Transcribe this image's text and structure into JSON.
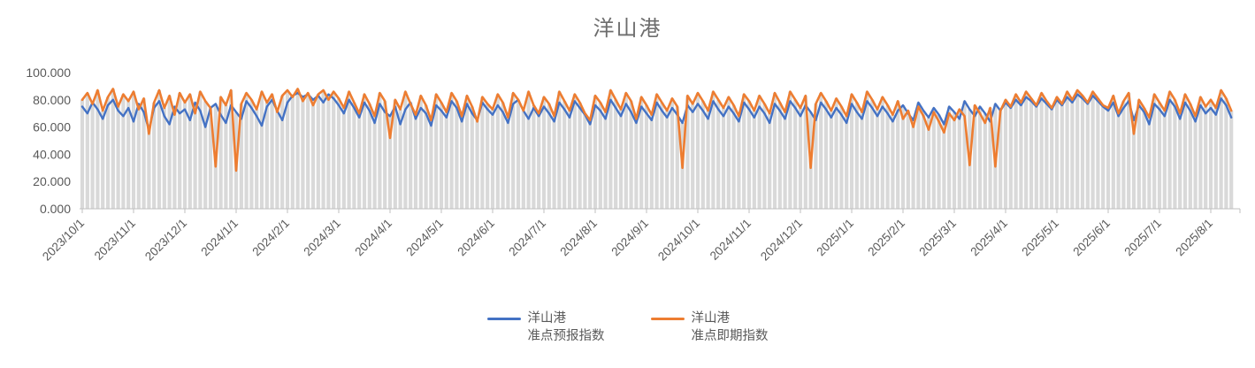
{
  "chart_data": {
    "type": "line",
    "title": "洋山港",
    "xlabel": "",
    "ylabel": "",
    "ylim": [
      0,
      100
    ],
    "grid": "none",
    "legend_position": "bottom",
    "points_per_month": 10,
    "dropline_color": "#D9D9D9",
    "axis_color": "#BFBFBF",
    "text_color": "#595959",
    "y_ticks": [
      0,
      20,
      40,
      60,
      80,
      100
    ],
    "y_tick_labels": [
      "0.000",
      "20.000",
      "40.000",
      "60.000",
      "80.000",
      "100.000"
    ],
    "x_tick_labels": [
      "2023/10/1",
      "2023/11/1",
      "2023/12/1",
      "2024/1/1",
      "2024/2/1",
      "2024/3/1",
      "2024/4/1",
      "2024/5/1",
      "2024/6/1",
      "2024/7/1",
      "2024/8/1",
      "2024/9/1",
      "2024/10/1",
      "2024/11/1",
      "2024/12/1",
      "2025/1/1",
      "2025/2/1",
      "2025/3/1",
      "2025/4/1",
      "2025/5/1",
      "2025/6/1",
      "2025/7/1",
      "2025/8/1"
    ],
    "series": [
      {
        "name": "洋山港 准点预报指数",
        "legend_line1": "洋山港",
        "legend_line2": "准点预报指数",
        "color": "#4472C4",
        "values": [
          75,
          70,
          78,
          73,
          66,
          76,
          80,
          72,
          68,
          74,
          64,
          77,
          71,
          58,
          74,
          79,
          68,
          62,
          75,
          70,
          73,
          65,
          78,
          72,
          60,
          74,
          77,
          69,
          63,
          76,
          71,
          66,
          79,
          74,
          68,
          61,
          75,
          80,
          72,
          65,
          78,
          83,
          85,
          82,
          84,
          80,
          83,
          78,
          84,
          81,
          76,
          70,
          80,
          74,
          67,
          78,
          72,
          63,
          77,
          71,
          68,
          75,
          62,
          73,
          78,
          66,
          74,
          70,
          61,
          76,
          72,
          67,
          79,
          74,
          64,
          77,
          70,
          65,
          78,
          73,
          69,
          76,
          71,
          63,
          77,
          80,
          72,
          66,
          74,
          68,
          75,
          70,
          64,
          78,
          73,
          67,
          79,
          74,
          69,
          62,
          76,
          72,
          66,
          80,
          74,
          68,
          77,
          71,
          63,
          75,
          70,
          65,
          78,
          72,
          67,
          74,
          69,
          63,
          76,
          71,
          77,
          72,
          66,
          79,
          73,
          68,
          75,
          70,
          64,
          78,
          73,
          67,
          75,
          70,
          63,
          77,
          72,
          66,
          79,
          74,
          68,
          76,
          71,
          65,
          78,
          73,
          67,
          74,
          69,
          63,
          77,
          71,
          66,
          79,
          74,
          68,
          75,
          70,
          64,
          72,
          76,
          70,
          65,
          78,
          72,
          67,
          74,
          69,
          62,
          75,
          71,
          66,
          79,
          73,
          68,
          75,
          70,
          64,
          77,
          72,
          78,
          74,
          80,
          76,
          82,
          79,
          75,
          81,
          77,
          73,
          80,
          76,
          82,
          78,
          84,
          81,
          77,
          83,
          79,
          75,
          72,
          78,
          68,
          74,
          79,
          65,
          76,
          71,
          62,
          77,
          73,
          68,
          80,
          75,
          66,
          78,
          72,
          64,
          76,
          70,
          74,
          69,
          81,
          76,
          67
        ]
      },
      {
        "name": "洋山港 准点即期指数",
        "legend_line1": "洋山港",
        "legend_line2": "准点即期指数",
        "color": "#ED7D31",
        "values": [
          80,
          85,
          77,
          87,
          72,
          82,
          88,
          75,
          84,
          79,
          86,
          73,
          81,
          55,
          78,
          87,
          74,
          83,
          69,
          85,
          78,
          84,
          70,
          86,
          79,
          74,
          31,
          82,
          76,
          87,
          28,
          77,
          85,
          80,
          73,
          86,
          78,
          84,
          71,
          83,
          87,
          82,
          88,
          79,
          85,
          76,
          84,
          87,
          80,
          86,
          81,
          74,
          86,
          78,
          70,
          84,
          77,
          68,
          85,
          79,
          52,
          80,
          73,
          86,
          77,
          69,
          83,
          76,
          65,
          84,
          78,
          71,
          85,
          79,
          68,
          83,
          75,
          64,
          82,
          77,
          73,
          84,
          78,
          67,
          85,
          80,
          72,
          86,
          76,
          70,
          82,
          77,
          68,
          86,
          79,
          72,
          84,
          78,
          70,
          65,
          83,
          78,
          71,
          87,
          80,
          73,
          85,
          79,
          66,
          82,
          76,
          69,
          84,
          78,
          72,
          81,
          75,
          30,
          83,
          77,
          85,
          79,
          72,
          86,
          80,
          74,
          82,
          76,
          68,
          84,
          79,
          72,
          83,
          77,
          70,
          85,
          78,
          71,
          86,
          80,
          74,
          83,
          30,
          77,
          85,
          79,
          72,
          81,
          75,
          68,
          84,
          78,
          71,
          86,
          80,
          73,
          82,
          76,
          69,
          79,
          66,
          72,
          60,
          75,
          68,
          58,
          71,
          64,
          56,
          70,
          65,
          73,
          68,
          32,
          76,
          70,
          63,
          74,
          31,
          72,
          80,
          75,
          84,
          78,
          86,
          81,
          76,
          85,
          79,
          74,
          82,
          77,
          86,
          80,
          87,
          83,
          78,
          86,
          81,
          76,
          74,
          83,
          70,
          79,
          85,
          55,
          80,
          74,
          67,
          84,
          78,
          72,
          86,
          80,
          70,
          84,
          77,
          68,
          82,
          75,
          80,
          74,
          87,
          81,
          72
        ]
      }
    ]
  }
}
